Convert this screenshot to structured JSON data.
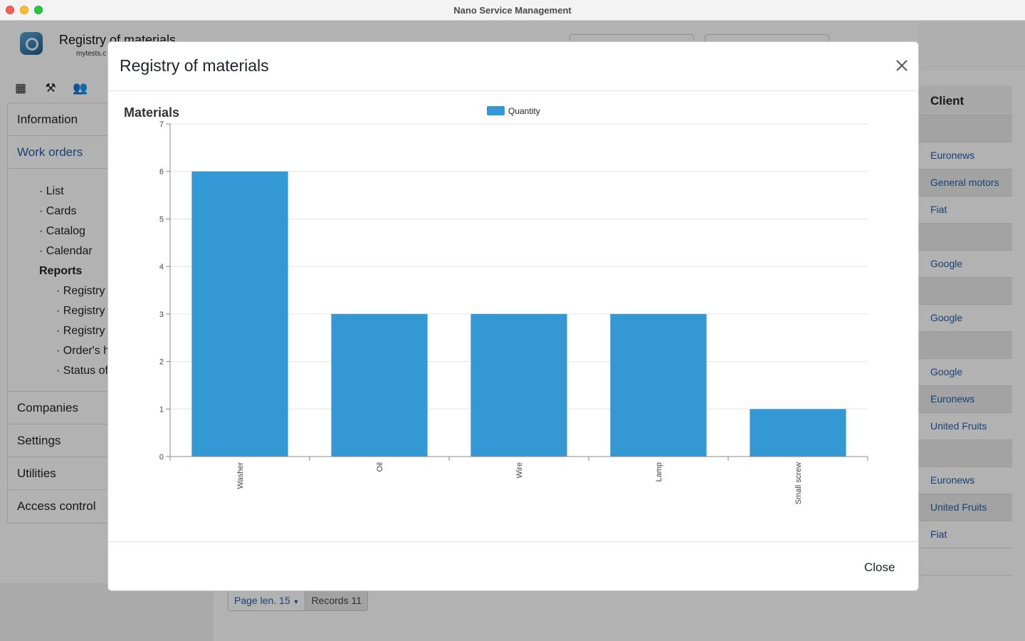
{
  "window": {
    "title": "Nano Service Management"
  },
  "app": {
    "title": "Registry of materials",
    "subtitle": "mytests.c",
    "sidebar": {
      "items_top": [
        {
          "label": "Information",
          "active": false
        },
        {
          "label": "Work orders",
          "active": true
        }
      ],
      "work_orders_links": [
        "· List",
        "· Cards",
        "· Catalog",
        "· Calendar"
      ],
      "reports_heading": "Reports",
      "report_links": [
        "· Registry",
        "· Registry",
        "· Registry",
        "· Order's h",
        "· Status of"
      ],
      "items_bottom": [
        "Companies",
        "Settings",
        "Utilities",
        "Access control"
      ]
    },
    "client_column": {
      "header": "Client",
      "cells": [
        "",
        "Euronews",
        "General motors",
        "Fiat",
        "",
        "Google",
        "",
        "Google",
        "",
        "Google",
        "Euronews",
        "United Fruits",
        "",
        "Euronews",
        "United Fruits",
        "Fiat",
        ""
      ]
    },
    "pager": {
      "page_len_label": "Page len. 15",
      "records_label": "Records 11"
    },
    "toolbar_icons": [
      "calendar-icon",
      "hammer-icon",
      "users-icon",
      "document-icon"
    ]
  },
  "modal": {
    "title": "Registry of materials",
    "close_label": "Close",
    "close_icon": "close-icon"
  },
  "chart_data": {
    "type": "bar",
    "title": "Materials",
    "categories": [
      "Washer",
      "Oil",
      "Wire",
      "Lamp",
      "Small screw"
    ],
    "series": [
      {
        "name": "Quantity",
        "values": [
          6,
          3,
          3,
          3,
          1
        ],
        "color": "#3498d4"
      }
    ],
    "ylim": [
      0,
      7
    ],
    "yticks": [
      0,
      1,
      2,
      3,
      4,
      5,
      6,
      7
    ],
    "xlabel": "",
    "ylabel": "",
    "grid": true,
    "legend_position": "top"
  }
}
